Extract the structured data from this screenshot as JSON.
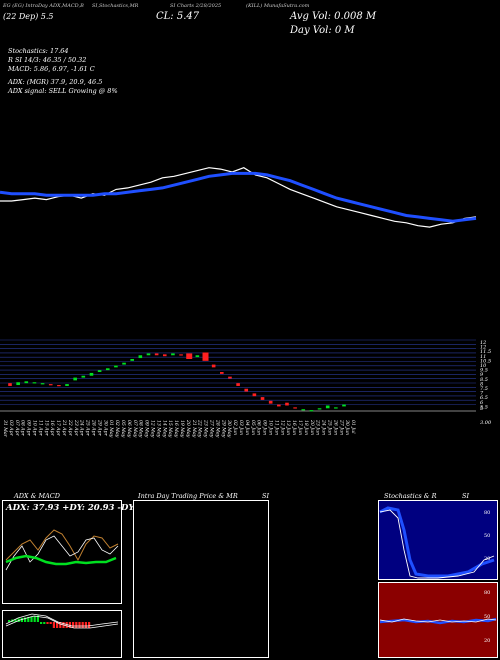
{
  "header": {
    "t1": "EG (EG) IntraDay ADX,MACD,B",
    "t2": "SI,Stochastics,MR",
    "t3": "SI Charts 2/28/2025",
    "t4": "(KILL) MunafaSutra.com",
    "date_line": "(22  Dep)  5.5",
    "cl": "CL: 5.47",
    "avg_vol": "Avg Vol: 0.008   M",
    "day_vol": "Day Vol: 0   M"
  },
  "indicators": {
    "stoch": "Stochastics: 17.64",
    "rsi": "R         SI 14/3: 46.35 / 50.32",
    "macd": "MACD: 5.86, 6.97, -1.61 C",
    "adx": "ADX:                          (MGR) 37.9,  20.9,  46.5",
    "signal": "ADX  signal: SELL Growing @ 8%"
  },
  "panels": {
    "adx_title": "ADX  & MACD",
    "adx_values": "ADX: 37.93 +DY: 20.93 -DY: 46.51",
    "intraday_title": "Intra  Day Trading Price  & MR",
    "intraday_si": "SI",
    "stoch_title": "Stochastics & R",
    "stoch_si": "SI"
  },
  "colors": {
    "background": "#000000",
    "ma_line": "#1f4fff",
    "price_line": "#ffffff",
    "bull": "#00e020",
    "bear": "#ff2020",
    "stoch_panel_bg": "#000080",
    "rsi_panel_bg": "#8b0000"
  },
  "chart_data": [
    {
      "type": "line",
      "name": "price-and-moving-average",
      "x": [
        0,
        1,
        2,
        3,
        4,
        5,
        6,
        7,
        8,
        9,
        10,
        11,
        12,
        13,
        14,
        15,
        16,
        17,
        18,
        19,
        20,
        21,
        22,
        23,
        24,
        25,
        26,
        27,
        28,
        29,
        30,
        31,
        32,
        33,
        34,
        35,
        36,
        37,
        38,
        39,
        40,
        41
      ],
      "series": [
        {
          "values": [
            50,
            50,
            51,
            52,
            51,
            53,
            54,
            52,
            55,
            54,
            58,
            59,
            61,
            63,
            66,
            67,
            69,
            71,
            73,
            72,
            70,
            73,
            68,
            66,
            62,
            58,
            55,
            52,
            49,
            46,
            44,
            42,
            40,
            38,
            36,
            35,
            33,
            32,
            34,
            35,
            38,
            39
          ]
        },
        {
          "values": [
            56,
            55,
            55,
            55,
            54,
            54,
            54,
            54,
            54,
            55,
            55,
            56,
            57,
            58,
            59,
            61,
            63,
            65,
            67,
            68,
            69,
            69,
            69,
            68,
            66,
            64,
            61,
            58,
            55,
            52,
            50,
            48,
            46,
            44,
            42,
            40,
            39,
            38,
            37,
            36,
            37,
            38
          ]
        }
      ]
    },
    {
      "type": "bar",
      "name": "candles",
      "y_tick_labels": [
        "12",
        "12",
        "11.5",
        "11",
        "10.5",
        "10",
        "9.5",
        "9",
        "8.5",
        "8",
        "7.5",
        "7",
        "6.5",
        "6",
        "5.5",
        "5",
        "3.00"
      ],
      "candles": [
        {
          "o": 7.6,
          "c": 7.3
        },
        {
          "o": 7.4,
          "c": 7.7
        },
        {
          "o": 7.6,
          "c": 7.8
        },
        {
          "o": 7.6,
          "c": 7.7
        },
        {
          "o": 7.5,
          "c": 7.6
        },
        {
          "o": 7.5,
          "c": 7.4
        },
        {
          "o": 7.4,
          "c": 7.3
        },
        {
          "o": 7.3,
          "c": 7.5
        },
        {
          "o": 7.9,
          "c": 8.2
        },
        {
          "o": 8.2,
          "c": 8.4
        },
        {
          "o": 8.4,
          "c": 8.7
        },
        {
          "o": 8.8,
          "c": 9.0
        },
        {
          "o": 9.0,
          "c": 9.2
        },
        {
          "o": 9.3,
          "c": 9.5
        },
        {
          "o": 9.6,
          "c": 9.8
        },
        {
          "o": 10.0,
          "c": 10.2
        },
        {
          "o": 10.3,
          "c": 10.6
        },
        {
          "o": 10.6,
          "c": 10.8
        },
        {
          "o": 10.8,
          "c": 10.6
        },
        {
          "o": 10.7,
          "c": 10.5
        },
        {
          "o": 10.6,
          "c": 10.8
        },
        {
          "o": 10.7,
          "c": 10.6
        },
        {
          "o": 10.8,
          "c": 10.2
        },
        {
          "o": 10.4,
          "c": 10.6
        },
        {
          "o": 10.9,
          "c": 10.0
        },
        {
          "o": 9.6,
          "c": 9.3
        },
        {
          "o": 8.8,
          "c": 8.6
        },
        {
          "o": 8.3,
          "c": 8.1
        },
        {
          "o": 7.6,
          "c": 7.3
        },
        {
          "o": 7.0,
          "c": 6.7
        },
        {
          "o": 6.5,
          "c": 6.2
        },
        {
          "o": 6.1,
          "c": 5.8
        },
        {
          "o": 5.7,
          "c": 5.4
        },
        {
          "o": 5.3,
          "c": 5.1
        },
        {
          "o": 5.5,
          "c": 5.2
        },
        {
          "o": 5.0,
          "c": 4.9
        },
        {
          "o": 4.8,
          "c": 4.8
        },
        {
          "o": 4.7,
          "c": 4.7
        },
        {
          "o": 4.8,
          "c": 4.9
        },
        {
          "o": 4.9,
          "c": 5.2
        },
        {
          "o": 5.0,
          "c": 5.0
        },
        {
          "o": 5.1,
          "c": 5.3
        }
      ]
    }
  ],
  "x_labels": [
    "31 Mar",
    "03 Apr",
    "07 Apr",
    "08 Apr",
    "09 Apr",
    "10 Apr",
    "11 Apr",
    "15 Apr",
    "16 Apr",
    "17 Apr",
    "21 Apr",
    "22 Apr",
    "23 Apr",
    "24 Apr",
    "25 Apr",
    "28 Apr",
    "29 Apr",
    "30 Apr",
    "01 May",
    "02 May",
    "05 May",
    "06 May",
    "07 May",
    "08 May",
    "09 May",
    "12 May",
    "13 May",
    "14 May",
    "15 May",
    "16 May",
    "19 May",
    "20 May",
    "21 May",
    "22 May",
    "23 May",
    "27 May",
    "28 May",
    "29 May",
    "30 May",
    "02 Jun",
    "03 Jun",
    "04 Jun",
    "05 Jun",
    "06 Jun",
    "09 Jun",
    "10 Jun",
    "11 Jun",
    "12 Jun",
    "13 Jun",
    "16 Jun",
    "17 Jun",
    "18 Jun",
    "20 Jun",
    "23 Jun",
    "24 Jun",
    "25 Jun",
    "26 Jun",
    "27 Jun",
    "30 Jun",
    "01 Jul"
  ],
  "stoch_axis": [
    "80",
    "50",
    "20"
  ],
  "rsi_axis": [
    "80",
    "50",
    "20"
  ]
}
